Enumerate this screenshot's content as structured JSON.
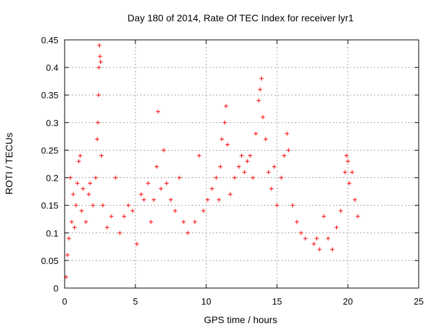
{
  "chart_data": {
    "type": "scatter",
    "title": "Day 180 of 2014, Rate Of TEC Index for receiver lyr1",
    "xlabel": "GPS time / hours",
    "ylabel": "ROTI / TECUs",
    "xlim": [
      0,
      25
    ],
    "ylim": [
      0,
      0.45
    ],
    "x_ticks": [
      "0",
      "5",
      "10",
      "15",
      "20",
      "25"
    ],
    "y_ticks": [
      "0",
      "0.05",
      "0.1",
      "0.15",
      "0.2",
      "0.25",
      "0.3",
      "0.35",
      "0.4",
      "0.45"
    ],
    "grid": true,
    "marker": "+",
    "color": "#ff0000",
    "series": [
      {
        "name": "ROTI",
        "points": [
          [
            0.1,
            0.02
          ],
          [
            0.2,
            0.06
          ],
          [
            0.3,
            0.09
          ],
          [
            0.4,
            0.2
          ],
          [
            0.5,
            0.12
          ],
          [
            0.6,
            0.17
          ],
          [
            0.7,
            0.11
          ],
          [
            0.8,
            0.15
          ],
          [
            0.9,
            0.19
          ],
          [
            1.0,
            0.23
          ],
          [
            1.1,
            0.24
          ],
          [
            1.2,
            0.14
          ],
          [
            1.3,
            0.18
          ],
          [
            1.5,
            0.12
          ],
          [
            1.7,
            0.17
          ],
          [
            1.8,
            0.19
          ],
          [
            2.0,
            0.15
          ],
          [
            2.2,
            0.2
          ],
          [
            2.3,
            0.27
          ],
          [
            2.35,
            0.3
          ],
          [
            2.4,
            0.35
          ],
          [
            2.42,
            0.4
          ],
          [
            2.45,
            0.44
          ],
          [
            2.5,
            0.42
          ],
          [
            2.55,
            0.41
          ],
          [
            2.6,
            0.24
          ],
          [
            2.7,
            0.15
          ],
          [
            3.0,
            0.11
          ],
          [
            3.3,
            0.13
          ],
          [
            3.6,
            0.2
          ],
          [
            3.9,
            0.1
          ],
          [
            4.2,
            0.13
          ],
          [
            4.5,
            0.15
          ],
          [
            4.8,
            0.14
          ],
          [
            5.1,
            0.08
          ],
          [
            5.4,
            0.17
          ],
          [
            5.6,
            0.16
          ],
          [
            5.9,
            0.19
          ],
          [
            6.1,
            0.12
          ],
          [
            6.3,
            0.16
          ],
          [
            6.5,
            0.22
          ],
          [
            6.6,
            0.32
          ],
          [
            6.8,
            0.18
          ],
          [
            7.0,
            0.25
          ],
          [
            7.2,
            0.19
          ],
          [
            7.5,
            0.16
          ],
          [
            7.8,
            0.14
          ],
          [
            8.1,
            0.2
          ],
          [
            8.4,
            0.12
          ],
          [
            8.7,
            0.1
          ],
          [
            9.2,
            0.12
          ],
          [
            9.5,
            0.24
          ],
          [
            9.8,
            0.14
          ],
          [
            10.1,
            0.16
          ],
          [
            10.4,
            0.18
          ],
          [
            10.7,
            0.2
          ],
          [
            10.9,
            0.16
          ],
          [
            11.0,
            0.22
          ],
          [
            11.1,
            0.27
          ],
          [
            11.3,
            0.3
          ],
          [
            11.4,
            0.33
          ],
          [
            11.5,
            0.26
          ],
          [
            11.7,
            0.17
          ],
          [
            12.0,
            0.2
          ],
          [
            12.3,
            0.22
          ],
          [
            12.5,
            0.24
          ],
          [
            12.7,
            0.21
          ],
          [
            12.9,
            0.23
          ],
          [
            13.1,
            0.24
          ],
          [
            13.3,
            0.2
          ],
          [
            13.5,
            0.28
          ],
          [
            13.7,
            0.34
          ],
          [
            13.8,
            0.36
          ],
          [
            13.9,
            0.38
          ],
          [
            14.0,
            0.31
          ],
          [
            14.2,
            0.27
          ],
          [
            14.4,
            0.21
          ],
          [
            14.6,
            0.18
          ],
          [
            14.8,
            0.22
          ],
          [
            15.0,
            0.15
          ],
          [
            15.3,
            0.2
          ],
          [
            15.5,
            0.24
          ],
          [
            15.7,
            0.28
          ],
          [
            15.8,
            0.25
          ],
          [
            16.1,
            0.15
          ],
          [
            16.4,
            0.12
          ],
          [
            16.7,
            0.1
          ],
          [
            17.0,
            0.09
          ],
          [
            17.6,
            0.08
          ],
          [
            17.8,
            0.09
          ],
          [
            18.0,
            0.07
          ],
          [
            18.3,
            0.13
          ],
          [
            18.6,
            0.09
          ],
          [
            18.9,
            0.07
          ],
          [
            19.2,
            0.11
          ],
          [
            19.5,
            0.14
          ],
          [
            19.8,
            0.21
          ],
          [
            19.9,
            0.24
          ],
          [
            20.0,
            0.23
          ],
          [
            20.1,
            0.19
          ],
          [
            20.3,
            0.21
          ],
          [
            20.5,
            0.16
          ],
          [
            20.7,
            0.13
          ]
        ]
      }
    ]
  }
}
